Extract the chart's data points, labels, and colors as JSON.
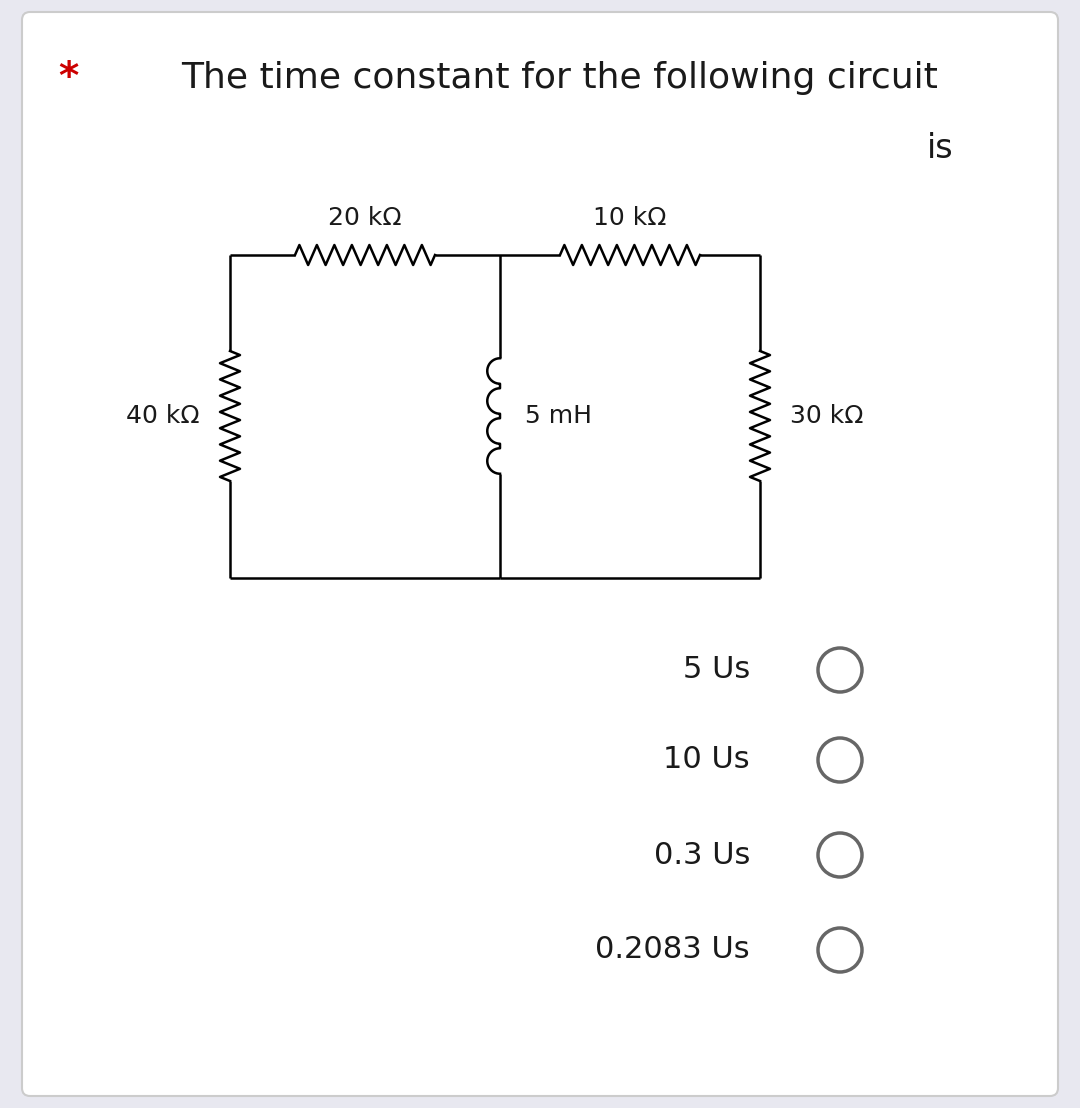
{
  "title_line1": "The time constant for the following circuit",
  "title_line2": "is",
  "star_color": "#cc0000",
  "text_color": "#1a1a1a",
  "bg_color": "#e8e8f0",
  "card_color": "#ffffff",
  "options": [
    "5 Us",
    "10 Us",
    "0.3 Us",
    "0.2083 Us"
  ],
  "circuit": {
    "r40_label": "40 kΩ",
    "r20_label": "20 kΩ",
    "r10_label": "10 kΩ",
    "r30_label": "30 kΩ",
    "l5_label": "5 mH"
  },
  "font_size_title": 26,
  "font_size_is": 24,
  "font_size_options": 22,
  "font_size_circuit": 18,
  "circle_color": "#666666",
  "wire_lw": 1.8,
  "comp_lw": 1.8
}
